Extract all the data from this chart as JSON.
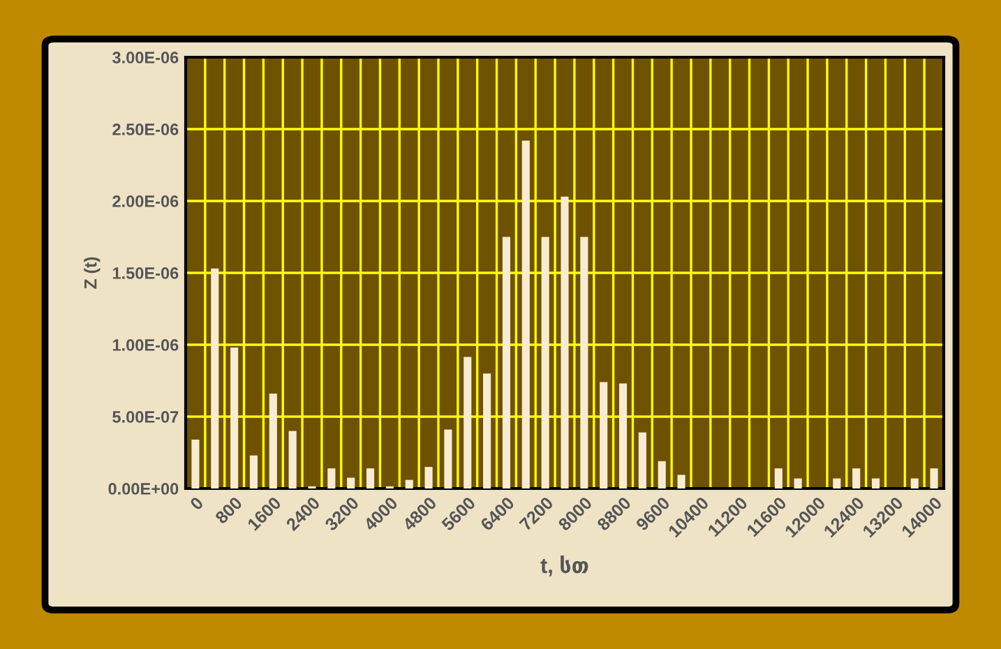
{
  "chart_data": {
    "type": "bar",
    "xlabel": "t, სთ",
    "ylabel": "Z (t)",
    "categories": [
      "0",
      null,
      "800",
      null,
      "1600",
      null,
      "2400",
      null,
      "3200",
      null,
      "4000",
      null,
      "4800",
      null,
      "5600",
      null,
      "6400",
      null,
      "7200",
      null,
      "8000",
      null,
      "8800",
      null,
      "9600",
      null,
      "10400",
      null,
      "11200",
      null,
      "11600",
      null,
      "12000",
      null,
      "12400",
      null,
      "13200",
      null,
      "14000"
    ],
    "values": [
      3.4e-07,
      1.53e-06,
      9.8e-07,
      2.3e-07,
      6.6e-07,
      4e-07,
      1.5e-08,
      1.4e-07,
      7.5e-08,
      1.4e-07,
      1.5e-08,
      6e-08,
      1.5e-07,
      4.1e-07,
      9.15e-07,
      8e-07,
      1.75e-06,
      2.42e-06,
      1.75e-06,
      2.03e-06,
      1.75e-06,
      7.4e-07,
      7.3e-07,
      3.9e-07,
      1.9e-07,
      9.5e-08,
      0,
      0,
      0,
      0,
      1.4e-07,
      7e-08,
      0,
      7e-08,
      1.4e-07,
      7e-08,
      0,
      7e-08,
      1.4e-07
    ],
    "color": "#f8ecd0",
    "ylim": [
      0,
      3e-06
    ],
    "yticks": [
      {
        "value": 0,
        "label": "0.00E+00"
      },
      {
        "value": 5e-07,
        "label": "5.00E-07"
      },
      {
        "value": 1e-06,
        "label": "1.00E-06"
      },
      {
        "value": 1.5e-06,
        "label": "1.50E-06"
      },
      {
        "value": 2e-06,
        "label": "2.00E-06"
      },
      {
        "value": 2.5e-06,
        "label": "2.50E-06"
      },
      {
        "value": 3e-06,
        "label": "3.00E-06"
      }
    ],
    "grid": true
  }
}
